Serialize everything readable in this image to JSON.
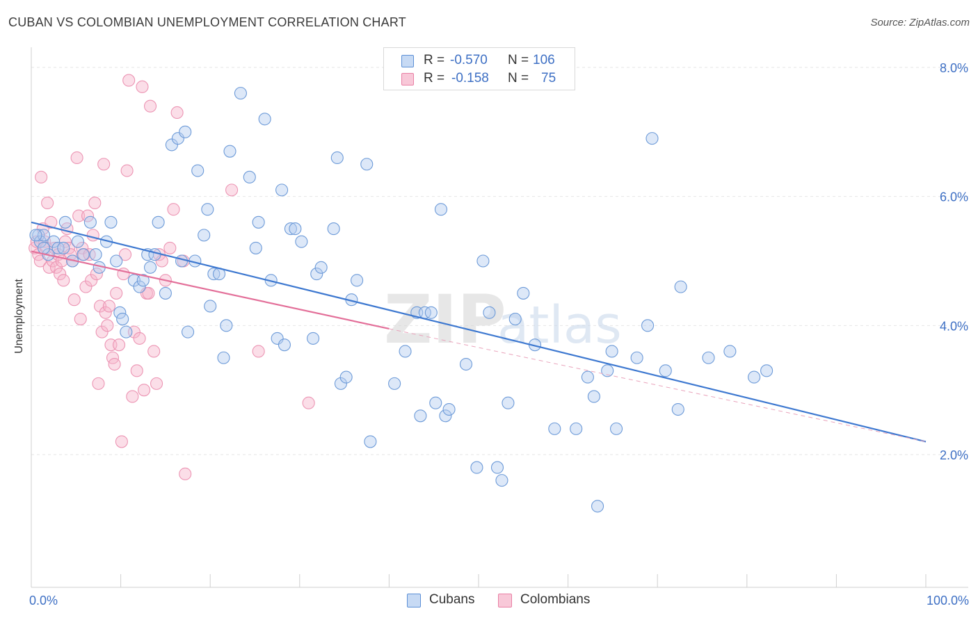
{
  "title": "CUBAN VS COLOMBIAN UNEMPLOYMENT CORRELATION CHART",
  "source": "Source: ZipAtlas.com",
  "watermark": {
    "zip": "ZIP",
    "atlas": "atlas"
  },
  "legend": {
    "rows": [
      {
        "r_label": "R = ",
        "r_value": "-0.570",
        "n_label": "N = ",
        "n_value": "106",
        "color": "#5b8fd6",
        "fill": "#c7daf4"
      },
      {
        "r_label": "R = ",
        "r_value": "-0.158",
        "n_label": "N = ",
        "n_value": "75",
        "color": "#e97fa4",
        "fill": "#f8c8d8"
      }
    ]
  },
  "colors": {
    "blue": "#3d78d0",
    "pink": "#e36f99",
    "tick_text": "#3d6fc4",
    "grid": "#e6e6e6"
  },
  "chart_data": {
    "type": "scatter",
    "title": "CUBAN VS COLOMBIAN UNEMPLOYMENT CORRELATION CHART",
    "xlabel": "",
    "ylabel": "Unemployment",
    "xlim": [
      0,
      100
    ],
    "ylim": [
      0,
      8.2
    ],
    "x_tick_labels": [
      "0.0%",
      "100.0%"
    ],
    "y_ticks": [
      2,
      4,
      6,
      8
    ],
    "y_tick_labels": [
      "2.0%",
      "4.0%",
      "6.0%",
      "8.0%"
    ],
    "grid": "horizontal dashed",
    "legend_position": "bottom-center",
    "series": [
      {
        "name": "Cubans",
        "color": "#5b8fd6",
        "trend": {
          "x": [
            0,
            100
          ],
          "y": [
            5.6,
            2.2
          ]
        },
        "points": [
          [
            0.8,
            5.4
          ],
          [
            1.0,
            5.3
          ],
          [
            1.4,
            5.4
          ],
          [
            1.9,
            5.1
          ],
          [
            2.5,
            5.3
          ],
          [
            3.0,
            5.2
          ],
          [
            3.6,
            5.2
          ],
          [
            3.8,
            5.6
          ],
          [
            4.6,
            5.0
          ],
          [
            5.2,
            5.3
          ],
          [
            5.8,
            5.1
          ],
          [
            6.6,
            5.6
          ],
          [
            7.2,
            5.1
          ],
          [
            7.6,
            4.9
          ],
          [
            8.4,
            5.3
          ],
          [
            8.9,
            5.6
          ],
          [
            9.5,
            5.0
          ],
          [
            9.9,
            4.2
          ],
          [
            10.2,
            4.1
          ],
          [
            10.6,
            3.9
          ],
          [
            11.5,
            4.7
          ],
          [
            12.1,
            4.6
          ],
          [
            12.5,
            4.7
          ],
          [
            13.0,
            5.1
          ],
          [
            13.3,
            4.9
          ],
          [
            13.8,
            5.1
          ],
          [
            14.2,
            5.6
          ],
          [
            15.0,
            4.5
          ],
          [
            15.7,
            6.8
          ],
          [
            16.4,
            6.9
          ],
          [
            16.8,
            5.0
          ],
          [
            17.2,
            7.0
          ],
          [
            17.5,
            3.9
          ],
          [
            18.3,
            5.0
          ],
          [
            18.6,
            6.4
          ],
          [
            19.3,
            5.4
          ],
          [
            19.7,
            5.8
          ],
          [
            20.0,
            4.3
          ],
          [
            20.4,
            4.8
          ],
          [
            21.0,
            4.8
          ],
          [
            21.5,
            3.5
          ],
          [
            21.8,
            4.0
          ],
          [
            22.2,
            6.7
          ],
          [
            23.4,
            7.6
          ],
          [
            24.4,
            6.3
          ],
          [
            25.1,
            5.2
          ],
          [
            25.4,
            5.6
          ],
          [
            26.1,
            7.2
          ],
          [
            26.8,
            4.7
          ],
          [
            27.5,
            3.8
          ],
          [
            28.0,
            6.1
          ],
          [
            28.3,
            3.7
          ],
          [
            29.0,
            5.5
          ],
          [
            29.5,
            5.5
          ],
          [
            30.2,
            5.3
          ],
          [
            31.5,
            3.8
          ],
          [
            31.9,
            4.8
          ],
          [
            32.4,
            4.9
          ],
          [
            33.8,
            5.5
          ],
          [
            34.2,
            6.6
          ],
          [
            34.6,
            3.1
          ],
          [
            35.2,
            3.2
          ],
          [
            35.8,
            4.4
          ],
          [
            36.4,
            4.7
          ],
          [
            37.5,
            6.5
          ],
          [
            37.9,
            2.2
          ],
          [
            40.6,
            3.1
          ],
          [
            41.8,
            3.6
          ],
          [
            43.1,
            4.2
          ],
          [
            43.5,
            2.6
          ],
          [
            44.0,
            4.2
          ],
          [
            44.7,
            4.2
          ],
          [
            45.2,
            2.8
          ],
          [
            45.8,
            5.8
          ],
          [
            46.3,
            2.6
          ],
          [
            46.7,
            2.7
          ],
          [
            48.6,
            3.4
          ],
          [
            49.8,
            1.8
          ],
          [
            50.5,
            5.0
          ],
          [
            51.2,
            4.2
          ],
          [
            52.1,
            1.8
          ],
          [
            52.6,
            1.6
          ],
          [
            53.3,
            2.8
          ],
          [
            54.1,
            4.1
          ],
          [
            55.0,
            4.5
          ],
          [
            56.3,
            3.7
          ],
          [
            58.5,
            2.4
          ],
          [
            60.9,
            2.4
          ],
          [
            62.2,
            3.2
          ],
          [
            62.9,
            2.9
          ],
          [
            63.3,
            1.2
          ],
          [
            64.4,
            3.3
          ],
          [
            64.9,
            3.6
          ],
          [
            65.4,
            2.4
          ],
          [
            67.7,
            3.5
          ],
          [
            68.9,
            4.0
          ],
          [
            69.4,
            6.9
          ],
          [
            70.9,
            3.3
          ],
          [
            72.3,
            2.7
          ],
          [
            72.6,
            4.6
          ],
          [
            75.7,
            3.5
          ],
          [
            78.1,
            3.6
          ],
          [
            80.8,
            3.2
          ],
          [
            82.2,
            3.3
          ],
          [
            0.5,
            5.4
          ],
          [
            1.4,
            5.2
          ]
        ]
      },
      {
        "name": "Colombians",
        "color": "#e97fa4",
        "trend": {
          "x": [
            0,
            40
          ],
          "y": [
            5.15,
            3.95
          ]
        },
        "trend_extension": {
          "x": [
            40,
            100
          ],
          "y": [
            3.95,
            2.2
          ]
        },
        "points": [
          [
            0.4,
            5.2
          ],
          [
            0.6,
            5.3
          ],
          [
            0.8,
            5.1
          ],
          [
            1.0,
            5.0
          ],
          [
            1.1,
            6.3
          ],
          [
            1.3,
            5.5
          ],
          [
            1.5,
            5.3
          ],
          [
            1.7,
            5.2
          ],
          [
            1.8,
            5.9
          ],
          [
            2.0,
            4.9
          ],
          [
            2.2,
            5.6
          ],
          [
            2.4,
            5.0
          ],
          [
            2.6,
            5.2
          ],
          [
            2.8,
            4.9
          ],
          [
            3.0,
            5.1
          ],
          [
            3.2,
            4.8
          ],
          [
            3.4,
            5.0
          ],
          [
            3.6,
            4.7
          ],
          [
            3.8,
            5.3
          ],
          [
            4.0,
            5.5
          ],
          [
            4.2,
            5.2
          ],
          [
            4.4,
            5.1
          ],
          [
            4.6,
            5.0
          ],
          [
            4.8,
            4.4
          ],
          [
            5.1,
            6.6
          ],
          [
            5.3,
            5.7
          ],
          [
            5.5,
            4.1
          ],
          [
            5.7,
            5.2
          ],
          [
            5.9,
            5.1
          ],
          [
            6.1,
            4.6
          ],
          [
            6.3,
            5.7
          ],
          [
            6.5,
            5.1
          ],
          [
            6.7,
            4.7
          ],
          [
            6.9,
            5.4
          ],
          [
            7.1,
            5.9
          ],
          [
            7.3,
            4.8
          ],
          [
            7.5,
            3.1
          ],
          [
            7.7,
            4.3
          ],
          [
            7.9,
            3.9
          ],
          [
            8.1,
            6.5
          ],
          [
            8.3,
            4.2
          ],
          [
            8.5,
            4.0
          ],
          [
            8.7,
            4.3
          ],
          [
            8.9,
            3.7
          ],
          [
            9.1,
            3.5
          ],
          [
            9.3,
            3.4
          ],
          [
            9.5,
            4.5
          ],
          [
            9.8,
            3.7
          ],
          [
            10.1,
            2.2
          ],
          [
            10.3,
            4.8
          ],
          [
            10.5,
            5.1
          ],
          [
            10.7,
            6.4
          ],
          [
            10.9,
            7.8
          ],
          [
            11.3,
            2.9
          ],
          [
            11.5,
            3.9
          ],
          [
            11.8,
            3.3
          ],
          [
            12.1,
            3.8
          ],
          [
            12.4,
            7.7
          ],
          [
            12.6,
            3.0
          ],
          [
            12.9,
            4.5
          ],
          [
            13.1,
            4.5
          ],
          [
            13.3,
            7.4
          ],
          [
            13.7,
            3.6
          ],
          [
            14.0,
            3.1
          ],
          [
            14.3,
            5.1
          ],
          [
            14.6,
            5.0
          ],
          [
            15.0,
            4.7
          ],
          [
            15.5,
            5.2
          ],
          [
            15.9,
            5.8
          ],
          [
            16.3,
            7.3
          ],
          [
            17.0,
            5.0
          ],
          [
            17.2,
            1.7
          ],
          [
            22.4,
            6.1
          ],
          [
            25.4,
            3.6
          ],
          [
            31.0,
            2.8
          ]
        ]
      }
    ]
  }
}
